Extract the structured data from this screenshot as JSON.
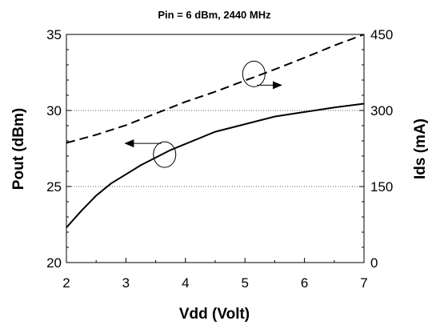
{
  "chart_data": {
    "type": "line",
    "title": "Pin = 6 dBm, 2440 MHz",
    "xlabel": "Vdd (Volt)",
    "ylabel_left": "Pout (dBm)",
    "ylabel_right": "Ids (mA)",
    "xlim": [
      2,
      7
    ],
    "ylim_left": [
      20,
      35
    ],
    "ylim_right": [
      0,
      450
    ],
    "x_ticks": [
      "2",
      "3",
      "4",
      "5",
      "6",
      "7"
    ],
    "y_ticks_left": [
      "20",
      "25",
      "30",
      "35"
    ],
    "y_ticks_right": [
      "0",
      "150",
      "300",
      "450"
    ],
    "grid": "horizontal dotted at 25 and 30 dBm",
    "series": [
      {
        "axis": "left",
        "style": "solid",
        "color": "#000000",
        "x": [
          2.0,
          2.25,
          2.5,
          2.75,
          3.0,
          3.25,
          3.5,
          3.75,
          4.0,
          4.5,
          5.0,
          5.5,
          6.0,
          6.5,
          7.0
        ],
        "y": [
          22.3,
          23.4,
          24.4,
          25.2,
          25.8,
          26.4,
          26.9,
          27.4,
          27.8,
          28.6,
          29.1,
          29.6,
          29.9,
          30.2,
          30.45
        ]
      },
      {
        "axis": "right",
        "style": "dashed",
        "color": "#000000",
        "x": [
          2.0,
          2.5,
          3.0,
          3.5,
          4.0,
          4.5,
          5.0,
          5.5,
          6.0,
          6.5,
          7.0
        ],
        "y": [
          236,
          252,
          271,
          294,
          317,
          337,
          359,
          381,
          404,
          428,
          450
        ]
      }
    ],
    "annotations": [
      {
        "marker": "circle",
        "points_to": "left axis",
        "series_index": 0,
        "at_x": 3.65,
        "at_y_left": 27.1
      },
      {
        "marker": "circle",
        "points_to": "right axis",
        "series_index": 1,
        "at_x": 5.15,
        "at_y_left": 32.4
      }
    ]
  }
}
